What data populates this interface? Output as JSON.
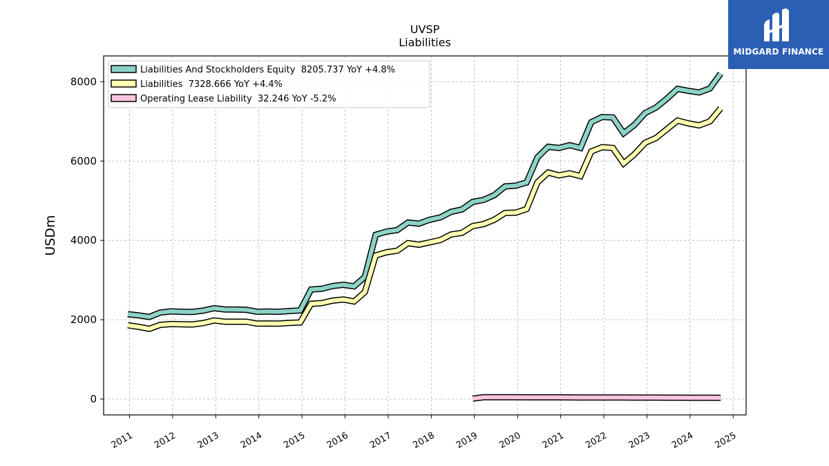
{
  "header": {
    "title": "UVSP",
    "subtitle": "Liabilities"
  },
  "logo": {
    "text": "MIDGARD FINANCE",
    "background": "#2b5fb4",
    "icon": "midgard-logo-icon"
  },
  "chart_data": {
    "type": "line",
    "title": "UVSP",
    "subtitle": "Liabilities",
    "xlabel": "",
    "ylabel": "USDm",
    "xlim": [
      2010.4,
      2025.3
    ],
    "ylim": [
      -400,
      8650
    ],
    "yticks": [
      0,
      2000,
      4000,
      6000,
      8000
    ],
    "xticks": [
      "2011",
      "2012",
      "2013",
      "2014",
      "2015",
      "2016",
      "2017",
      "2018",
      "2019",
      "2020",
      "2021",
      "2022",
      "2023",
      "2024",
      "2025"
    ],
    "grid": true,
    "legend_position": "top-left",
    "series": [
      {
        "name": "Liabilities And Stockholders Equity  8205.737 YoY +4.8%",
        "color": "#8dd3c7",
        "points": [
          [
            2010.96,
            2140
          ],
          [
            2011.21,
            2110
          ],
          [
            2011.46,
            2070
          ],
          [
            2011.71,
            2180
          ],
          [
            2011.96,
            2210
          ],
          [
            2012.21,
            2200
          ],
          [
            2012.46,
            2195
          ],
          [
            2012.71,
            2230
          ],
          [
            2012.96,
            2290
          ],
          [
            2013.21,
            2260
          ],
          [
            2013.46,
            2255
          ],
          [
            2013.71,
            2250
          ],
          [
            2013.96,
            2200
          ],
          [
            2014.21,
            2205
          ],
          [
            2014.46,
            2200
          ],
          [
            2014.71,
            2220
          ],
          [
            2014.96,
            2235
          ],
          [
            2015.21,
            2760
          ],
          [
            2015.46,
            2780
          ],
          [
            2015.71,
            2850
          ],
          [
            2015.96,
            2880
          ],
          [
            2016.21,
            2840
          ],
          [
            2016.46,
            3080
          ],
          [
            2016.71,
            4140
          ],
          [
            2016.96,
            4220
          ],
          [
            2017.21,
            4260
          ],
          [
            2017.46,
            4450
          ],
          [
            2017.71,
            4420
          ],
          [
            2017.96,
            4520
          ],
          [
            2018.21,
            4580
          ],
          [
            2018.46,
            4720
          ],
          [
            2018.71,
            4780
          ],
          [
            2018.96,
            4970
          ],
          [
            2019.21,
            5020
          ],
          [
            2019.46,
            5140
          ],
          [
            2019.71,
            5360
          ],
          [
            2019.96,
            5380
          ],
          [
            2020.21,
            5460
          ],
          [
            2020.46,
            6090
          ],
          [
            2020.71,
            6360
          ],
          [
            2020.96,
            6330
          ],
          [
            2021.21,
            6400
          ],
          [
            2021.46,
            6330
          ],
          [
            2021.71,
            6980
          ],
          [
            2021.96,
            7110
          ],
          [
            2022.21,
            7100
          ],
          [
            2022.46,
            6700
          ],
          [
            2022.71,
            6910
          ],
          [
            2022.96,
            7210
          ],
          [
            2023.21,
            7350
          ],
          [
            2023.46,
            7570
          ],
          [
            2023.71,
            7820
          ],
          [
            2023.96,
            7770
          ],
          [
            2024.21,
            7730
          ],
          [
            2024.46,
            7830
          ],
          [
            2024.71,
            8206
          ]
        ]
      },
      {
        "name": "Liabilities  7328.666 YoY +4.4%",
        "color": "#ffffb3",
        "points": [
          [
            2010.96,
            1860
          ],
          [
            2011.21,
            1820
          ],
          [
            2011.46,
            1770
          ],
          [
            2011.71,
            1870
          ],
          [
            2011.96,
            1890
          ],
          [
            2012.21,
            1885
          ],
          [
            2012.46,
            1880
          ],
          [
            2012.71,
            1915
          ],
          [
            2012.96,
            1980
          ],
          [
            2013.21,
            1950
          ],
          [
            2013.46,
            1950
          ],
          [
            2013.71,
            1950
          ],
          [
            2013.96,
            1900
          ],
          [
            2014.21,
            1905
          ],
          [
            2014.46,
            1900
          ],
          [
            2014.71,
            1920
          ],
          [
            2014.96,
            1930
          ],
          [
            2015.21,
            2400
          ],
          [
            2015.46,
            2420
          ],
          [
            2015.71,
            2480
          ],
          [
            2015.96,
            2510
          ],
          [
            2016.21,
            2460
          ],
          [
            2016.46,
            2700
          ],
          [
            2016.71,
            3620
          ],
          [
            2016.96,
            3700
          ],
          [
            2017.21,
            3740
          ],
          [
            2017.46,
            3930
          ],
          [
            2017.71,
            3890
          ],
          [
            2017.96,
            3950
          ],
          [
            2018.21,
            4010
          ],
          [
            2018.46,
            4150
          ],
          [
            2018.71,
            4190
          ],
          [
            2018.96,
            4360
          ],
          [
            2019.21,
            4410
          ],
          [
            2019.46,
            4520
          ],
          [
            2019.71,
            4690
          ],
          [
            2019.96,
            4700
          ],
          [
            2020.21,
            4790
          ],
          [
            2020.46,
            5460
          ],
          [
            2020.71,
            5710
          ],
          [
            2020.96,
            5640
          ],
          [
            2021.21,
            5690
          ],
          [
            2021.46,
            5620
          ],
          [
            2021.71,
            6240
          ],
          [
            2021.96,
            6350
          ],
          [
            2022.21,
            6330
          ],
          [
            2022.46,
            5940
          ],
          [
            2022.71,
            6170
          ],
          [
            2022.96,
            6460
          ],
          [
            2023.21,
            6580
          ],
          [
            2023.46,
            6800
          ],
          [
            2023.71,
            7020
          ],
          [
            2023.96,
            6950
          ],
          [
            2024.21,
            6900
          ],
          [
            2024.46,
            7000
          ],
          [
            2024.71,
            7329
          ]
        ]
      },
      {
        "name": "Operating Lease Liability  32.246 YoY -5.2%",
        "color": "#fcc5df",
        "points": [
          [
            2018.96,
            10
          ],
          [
            2019.21,
            45
          ],
          [
            2019.46,
            45
          ],
          [
            2019.71,
            45
          ],
          [
            2019.96,
            45
          ],
          [
            2020.21,
            44
          ],
          [
            2020.46,
            44
          ],
          [
            2020.71,
            43
          ],
          [
            2020.96,
            43
          ],
          [
            2021.21,
            42
          ],
          [
            2021.46,
            41
          ],
          [
            2021.71,
            40
          ],
          [
            2021.96,
            39
          ],
          [
            2022.21,
            38
          ],
          [
            2022.46,
            38
          ],
          [
            2022.71,
            37
          ],
          [
            2022.96,
            36
          ],
          [
            2023.21,
            36
          ],
          [
            2023.46,
            35
          ],
          [
            2023.71,
            35
          ],
          [
            2023.96,
            34
          ],
          [
            2024.21,
            34
          ],
          [
            2024.46,
            33
          ],
          [
            2024.71,
            32
          ]
        ]
      }
    ]
  }
}
